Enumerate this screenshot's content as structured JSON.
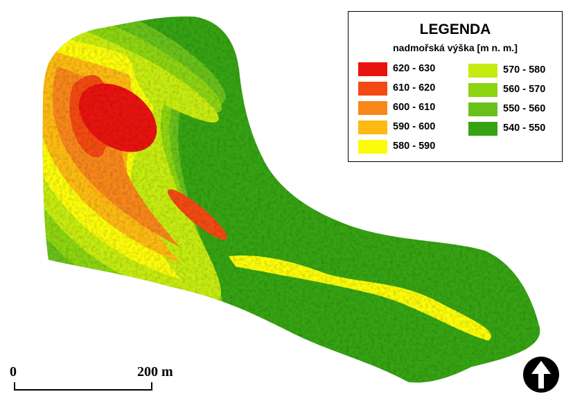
{
  "legend": {
    "title": "LEGENDA",
    "subtitle": "nadmořská výška [m n. m.]",
    "classes": [
      {
        "label": "620 - 630",
        "color": "#e8130f"
      },
      {
        "label": "610 - 620",
        "color": "#f24a12"
      },
      {
        "label": "600 - 610",
        "color": "#f7871b"
      },
      {
        "label": "590 - 600",
        "color": "#fcba12"
      },
      {
        "label": "580 - 590",
        "color": "#fbfb0b"
      },
      {
        "label": "570 - 580",
        "color": "#c6eb10"
      },
      {
        "label": "560 - 570",
        "color": "#8dd411"
      },
      {
        "label": "550 - 560",
        "color": "#69c01a"
      },
      {
        "label": "540 - 550",
        "color": "#36a313"
      }
    ]
  },
  "scalebar": {
    "start_label": "0",
    "end_label": "200 m"
  },
  "north_arrow": {
    "icon": "north-arrow-icon"
  },
  "map": {
    "type": "elevation-map",
    "unit": "m n. m."
  }
}
